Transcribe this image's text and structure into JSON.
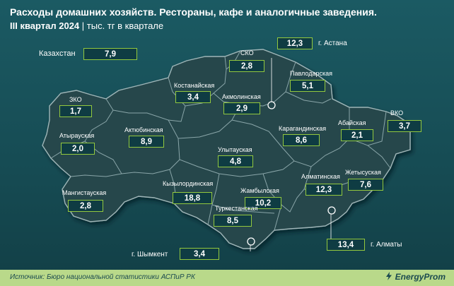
{
  "title_line1": "Расходы домашних хозяйств. Рестораны, кафе и аналогичные заведения.",
  "title_period": "III квартал 2024",
  "title_unit": "| тыс. тг в квартале",
  "national": {
    "label": "Казахстан",
    "value": "7,9"
  },
  "regions": [
    {
      "key": "zko",
      "label": "ЗКО",
      "value": "1,7"
    },
    {
      "key": "atyrau",
      "label": "Атырауская",
      "value": "2,0"
    },
    {
      "key": "mangistau",
      "label": "Мангистауская",
      "value": "2,8"
    },
    {
      "key": "aktobe",
      "label": "Актюбинская",
      "value": "8,9"
    },
    {
      "key": "kostanay",
      "label": "Костанайская",
      "value": "3,4"
    },
    {
      "key": "sko",
      "label": "СКО",
      "value": "2,8"
    },
    {
      "key": "akmola",
      "label": "Акмолинская",
      "value": "2,9"
    },
    {
      "key": "pavlodar",
      "label": "Павлодарская",
      "value": "5,1"
    },
    {
      "key": "vko",
      "label": "ВКО",
      "value": "3,7"
    },
    {
      "key": "abai",
      "label": "Абайская",
      "value": "2,1"
    },
    {
      "key": "karaganda",
      "label": "Карагандинская",
      "value": "8,6"
    },
    {
      "key": "ulytau",
      "label": "Улытауская",
      "value": "4,8"
    },
    {
      "key": "kyzylorda",
      "label": "Кызылординская",
      "value": "18,8"
    },
    {
      "key": "zhambyl",
      "label": "Жамбылская",
      "value": "10,2"
    },
    {
      "key": "turkestan",
      "label": "Туркестанская",
      "value": "8,5"
    },
    {
      "key": "almaty_obl",
      "label": "Алматинская",
      "value": "12,3"
    },
    {
      "key": "zhetysu",
      "label": "Жетысуская",
      "value": "7,6"
    }
  ],
  "cities": [
    {
      "key": "astana",
      "label": "г. Астана",
      "value": "12,3"
    },
    {
      "key": "almaty",
      "label": "г. Алматы",
      "value": "13,4"
    },
    {
      "key": "shymkent",
      "label": "г. Шымкент",
      "value": "3,4"
    }
  ],
  "source": "Источник: Бюро национальной статистики АСПиР РК",
  "brand": "EnergyProm",
  "colors": {
    "background": "#184e56",
    "land": "#25474c",
    "borders": "#8aa6a9",
    "box_border": "#93c83e",
    "footer": "#b9d98a"
  }
}
